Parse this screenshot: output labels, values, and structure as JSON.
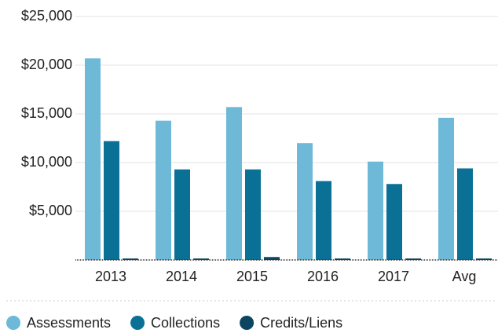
{
  "chart_data": {
    "type": "bar",
    "categories": [
      "2013",
      "2014",
      "2015",
      "2016",
      "2017",
      "Avg"
    ],
    "series": [
      {
        "name": "Assessments",
        "color": "#6db9d7",
        "values": [
          20700,
          14300,
          15700,
          12000,
          10100,
          14600
        ]
      },
      {
        "name": "Collections",
        "color": "#0a7096",
        "values": [
          12200,
          9300,
          9300,
          8100,
          7800,
          9400
        ]
      },
      {
        "name": "Credits/Liens",
        "color": "#0b4560",
        "values": [
          150,
          150,
          300,
          150,
          150,
          150
        ]
      }
    ],
    "ylim": [
      0,
      25000
    ],
    "yticks": [
      {
        "value": 5000,
        "label": "$5,000"
      },
      {
        "value": 10000,
        "label": "$10,000"
      },
      {
        "value": 15000,
        "label": "$15,000"
      },
      {
        "value": 20000,
        "label": "$20,000"
      },
      {
        "value": 25000,
        "label": "$25,000"
      }
    ],
    "grid": true,
    "legend": "bottom"
  }
}
